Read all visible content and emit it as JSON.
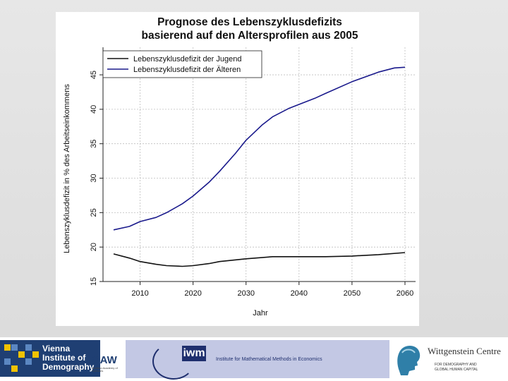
{
  "chart_data": {
    "type": "line",
    "title_lines": [
      "Prognose des Lebenszyklusdefizits",
      "basierend auf den Altersprofilen aus 2005"
    ],
    "xlabel": "Jahr",
    "ylabel": "Lebenszyklusdefizit in % des Arbeitseinkommens",
    "xlim": [
      2003,
      2062
    ],
    "ylim": [
      15,
      49
    ],
    "x_ticks": [
      2010,
      2020,
      2030,
      2040,
      2050,
      2060
    ],
    "y_ticks": [
      15,
      20,
      25,
      30,
      35,
      40,
      45
    ],
    "grid": true,
    "legend_position": "top-left",
    "series": [
      {
        "name": "Lebenszyklusdefizit der Jugend",
        "color": "#111111",
        "x": [
          2005,
          2008,
          2010,
          2013,
          2015,
          2018,
          2020,
          2023,
          2025,
          2030,
          2035,
          2040,
          2045,
          2050,
          2055,
          2060
        ],
        "y": [
          19.0,
          18.4,
          17.9,
          17.5,
          17.3,
          17.2,
          17.3,
          17.6,
          17.9,
          18.3,
          18.6,
          18.6,
          18.6,
          18.7,
          18.9,
          19.2
        ]
      },
      {
        "name": "Lebenszyklusdefizit der Älteren",
        "color": "#1a1a8c",
        "x": [
          2005,
          2008,
          2010,
          2013,
          2015,
          2018,
          2020,
          2023,
          2025,
          2028,
          2030,
          2033,
          2035,
          2038,
          2040,
          2043,
          2045,
          2050,
          2055,
          2058,
          2060
        ],
        "y": [
          22.5,
          23.0,
          23.7,
          24.3,
          25.0,
          26.3,
          27.4,
          29.4,
          31.0,
          33.6,
          35.5,
          37.7,
          38.9,
          40.1,
          40.7,
          41.6,
          42.3,
          44.0,
          45.4,
          46.0,
          46.1
        ]
      }
    ]
  },
  "footer": {
    "vid_logo_lines": [
      "Vienna",
      "Institute of",
      "Demography"
    ],
    "oaw_label": "OAW",
    "oaw_sub": "Austrian Academy of Sciences",
    "imw_badge": "iwm",
    "imw_text": "Institute for Mathematical Methods in Economics",
    "wc_title": "Wittgenstein Centre",
    "wc_sub_lines": [
      "FOR DEMOGRAPHY AND",
      "GLOBAL HUMAN CAPITAL"
    ],
    "colors": {
      "vid_blue": "#1f3f73",
      "vid_yellow": "#f2c200",
      "imw_panel": "#c3c8e4",
      "imw_navy": "#1f2f6e"
    }
  }
}
